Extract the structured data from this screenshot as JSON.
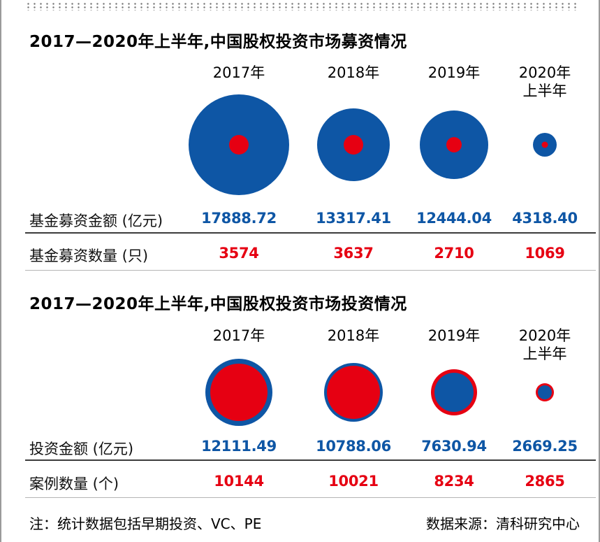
{
  "colors": {
    "blue": "#0e56a5",
    "red": "#e60012"
  },
  "sections": [
    {
      "title": "2017—2020年上半年,中国股权投资市场募资情况",
      "years": [
        {
          "line1": "2017年",
          "line2": ""
        },
        {
          "line1": "2018年",
          "line2": ""
        },
        {
          "line1": "2019年",
          "line2": ""
        },
        {
          "line1": "2020年",
          "line2": "上半年"
        }
      ],
      "rows": [
        {
          "label": "基金募资金额 (亿元)",
          "values": [
            "17888.72",
            "13317.41",
            "12444.04",
            "4318.40"
          ]
        },
        {
          "label": "基金募资数量 (只)",
          "values": [
            "3574",
            "3637",
            "2710",
            "1069"
          ]
        }
      ],
      "bubbles": [
        {
          "outer_r": 72,
          "outer_color": "#0e56a5",
          "inner_r": 14,
          "inner_color": "#e60012"
        },
        {
          "outer_r": 52,
          "outer_color": "#0e56a5",
          "inner_r": 14,
          "inner_color": "#e60012"
        },
        {
          "outer_r": 49,
          "outer_color": "#0e56a5",
          "inner_r": 11,
          "inner_color": "#e60012"
        },
        {
          "outer_r": 17,
          "outer_color": "#0e56a5",
          "inner_r": 4.5,
          "inner_color": "#e60012"
        }
      ]
    },
    {
      "title": "2017—2020年上半年,中国股权投资市场投资情况",
      "years": [
        {
          "line1": "2017年",
          "line2": ""
        },
        {
          "line1": "2018年",
          "line2": ""
        },
        {
          "line1": "2019年",
          "line2": ""
        },
        {
          "line1": "2020年",
          "line2": "上半年"
        }
      ],
      "rows": [
        {
          "label": "投资金额 (亿元)",
          "values": [
            "12111.49",
            "10788.06",
            "7630.94",
            "2669.25"
          ]
        },
        {
          "label": "案例数量 (个)",
          "values": [
            "10144",
            "10021",
            "8234",
            "2865"
          ]
        }
      ],
      "bubbles": [
        {
          "outer_r": 48,
          "outer_color": "#0e56a5",
          "inner_r": 41,
          "inner_color": "#e60012"
        },
        {
          "outer_r": 42,
          "outer_color": "#0e56a5",
          "inner_r": 38,
          "inner_color": "#e60012"
        },
        {
          "outer_r": 33,
          "outer_color": "#e60012",
          "inner_r": 28,
          "inner_color": "#0e56a5"
        },
        {
          "outer_r": 13,
          "outer_color": "#e60012",
          "inner_r": 10,
          "inner_color": "#0e56a5"
        }
      ]
    }
  ],
  "footer": {
    "note": "注：统计数据包括早期投资、VC、PE",
    "source": "数据来源：清科研究中心"
  },
  "chart_data": [
    {
      "type": "bubble",
      "title": "2017—2020年上半年,中国股权投资市场募资情况",
      "categories": [
        "2017年",
        "2018年",
        "2019年",
        "2020年上半年"
      ],
      "series": [
        {
          "name": "基金募资金额 (亿元)",
          "color": "#0e56a5",
          "values": [
            17888.72,
            13317.41,
            12444.04,
            4318.4
          ]
        },
        {
          "name": "基金募资数量 (只)",
          "color": "#e60012",
          "values": [
            3574,
            3637,
            2710,
            1069
          ]
        }
      ],
      "legend_position": "none",
      "grid": false,
      "note": "circle size encodes value; blue circle = 金额, red circle = 数量"
    },
    {
      "type": "bubble",
      "title": "2017—2020年上半年,中国股权投资市场投资情况",
      "categories": [
        "2017年",
        "2018年",
        "2019年",
        "2020年上半年"
      ],
      "series": [
        {
          "name": "投资金额 (亿元)",
          "color": "#0e56a5",
          "values": [
            12111.49,
            10788.06,
            7630.94,
            2669.25
          ]
        },
        {
          "name": "案例数量 (个)",
          "color": "#e60012",
          "values": [
            10144,
            10021,
            8234,
            2865
          ]
        }
      ],
      "legend_position": "none",
      "grid": false,
      "note": "overlapping circles; blue circle = 投资金额, red circle = 案例数量"
    }
  ]
}
